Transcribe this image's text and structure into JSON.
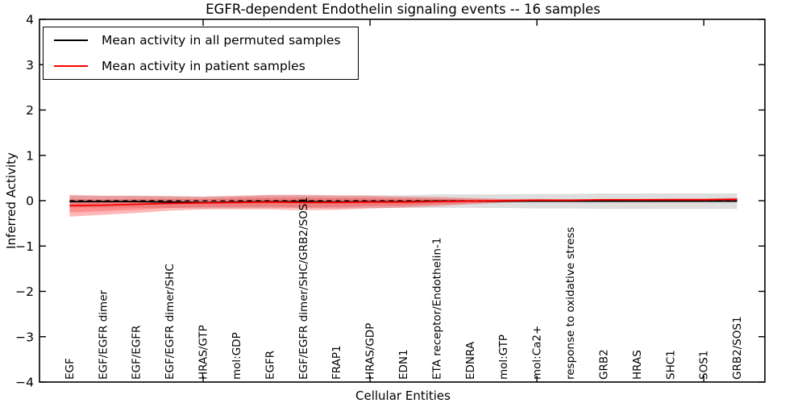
{
  "title": "EGFR-dependent Endothelin signaling events -- 16 samples",
  "legend": {
    "items": [
      {
        "label": "Mean activity in all permuted samples",
        "color": "#000000"
      },
      {
        "label": "Mean activity in patient samples",
        "color": "#ff0000"
      }
    ]
  },
  "chart_data": {
    "type": "line",
    "title": "EGFR-dependent Endothelin signaling events -- 16 samples",
    "xlabel": "Cellular Entities",
    "ylabel": "Inferred Activity",
    "ylim": [
      -4,
      4
    ],
    "grid": false,
    "legend_position": "upper-left",
    "ytick_values": [
      4,
      3,
      2,
      1,
      0,
      -1,
      -2,
      -3,
      -4
    ],
    "xtick_positions": [
      4,
      9,
      14,
      19
    ],
    "categories": [
      "EGF",
      "EGF/EGFR dimer",
      "EGF/EGFR",
      "EGF/EGFR dimer/SHC",
      "HRAS/GTP",
      "mol:GDP",
      "EGFR",
      "EGF/EGFR dimer/SHC/GRB2/SOS1",
      "FRAP1",
      "HRAS/GDP",
      "EDN1",
      "ETA receptor/Endothelin-1",
      "EDNRA",
      "mol:GTP",
      "mol:Ca2+",
      "response to oxidative stress",
      "GRB2",
      "HRAS",
      "SHC1",
      "SOS1",
      "GRB2/SOS1"
    ],
    "series": [
      {
        "name": "Mean activity in all permuted samples",
        "color": "#000000",
        "values": [
          -0.02,
          -0.02,
          -0.02,
          -0.03,
          -0.04,
          -0.03,
          -0.02,
          -0.02,
          -0.03,
          -0.02,
          -0.02,
          -0.01,
          -0.01,
          -0.01,
          -0.01,
          -0.01,
          -0.01,
          -0.01,
          -0.01,
          -0.01,
          -0.01
        ]
      },
      {
        "name": "Mean activity in patient samples",
        "color": "#ff0000",
        "values": [
          -0.11,
          -0.1,
          -0.08,
          -0.06,
          -0.05,
          -0.04,
          -0.03,
          -0.04,
          -0.04,
          -0.03,
          -0.03,
          -0.02,
          -0.01,
          0.0,
          0.01,
          0.01,
          0.02,
          0.02,
          0.02,
          0.02,
          0.03
        ]
      }
    ],
    "bands": [
      {
        "name": "permuted-samples-spread",
        "center_series": 0,
        "color": "rgba(0,0,0,0.13)",
        "halfwidths": [
          0.13,
          0.13,
          0.13,
          0.13,
          0.13,
          0.13,
          0.14,
          0.14,
          0.14,
          0.14,
          0.14,
          0.15,
          0.15,
          0.15,
          0.16,
          0.16,
          0.17,
          0.17,
          0.17,
          0.17,
          0.17
        ]
      },
      {
        "name": "patient-samples-spread-outer",
        "center_series": 1,
        "color": "rgba(255,0,0,0.28)",
        "halfwidths": [
          0.24,
          0.21,
          0.19,
          0.16,
          0.14,
          0.15,
          0.16,
          0.17,
          0.16,
          0.14,
          0.12,
          0.1,
          0.07,
          0.04,
          0.03,
          0.02,
          0.02,
          0.02,
          0.03,
          0.03,
          0.03
        ]
      },
      {
        "name": "patient-samples-spread-inner",
        "center_series": 1,
        "color": "rgba(255,0,0,0.22)",
        "halfwidths": [
          0.15,
          0.13,
          0.12,
          0.1,
          0.09,
          0.1,
          0.1,
          0.11,
          0.1,
          0.09,
          0.08,
          0.06,
          0.04,
          0.03,
          0.02,
          0.01,
          0.01,
          0.01,
          0.02,
          0.02,
          0.02
        ]
      }
    ],
    "zero_line": {
      "y": 0,
      "style": "dashed",
      "color": "#000000"
    }
  }
}
